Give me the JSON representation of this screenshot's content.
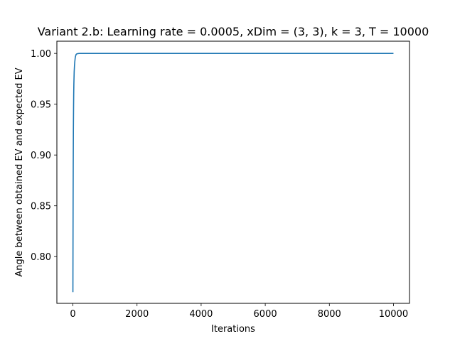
{
  "chart_data": {
    "type": "line",
    "title": "Variant 2.b: Learning rate = 0.0005, xDim = (3, 3), k = 3, T = 10000",
    "xlabel": "Iterations",
    "ylabel": "Angle between obtained EV and expected EV",
    "xlim": [
      -500,
      10500
    ],
    "ylim": [
      0.754,
      1.012
    ],
    "xticks": [
      0,
      2000,
      4000,
      6000,
      8000,
      10000
    ],
    "xtick_labels": [
      "0",
      "2000",
      "4000",
      "6000",
      "8000",
      "10000"
    ],
    "yticks": [
      0.8,
      0.85,
      0.9,
      0.95,
      1.0
    ],
    "ytick_labels": [
      "0.80",
      "0.85",
      "0.90",
      "0.95",
      "1.00"
    ],
    "grid": false,
    "series": [
      {
        "color": "#1f77b4",
        "x": [
          0,
          3,
          6,
          10,
          15,
          20,
          25,
          30,
          40,
          50,
          60,
          70,
          80,
          100,
          120,
          150,
          200,
          300,
          500,
          1000,
          2000,
          4000,
          6000,
          8000,
          10000
        ],
        "y": [
          0.765,
          0.81,
          0.85,
          0.89,
          0.925,
          0.945,
          0.96,
          0.97,
          0.982,
          0.988,
          0.992,
          0.995,
          0.997,
          0.999,
          0.9995,
          0.9998,
          1.0,
          1.0,
          1.0,
          1.0,
          1.0,
          1.0,
          1.0,
          1.0,
          1.0
        ]
      }
    ]
  }
}
